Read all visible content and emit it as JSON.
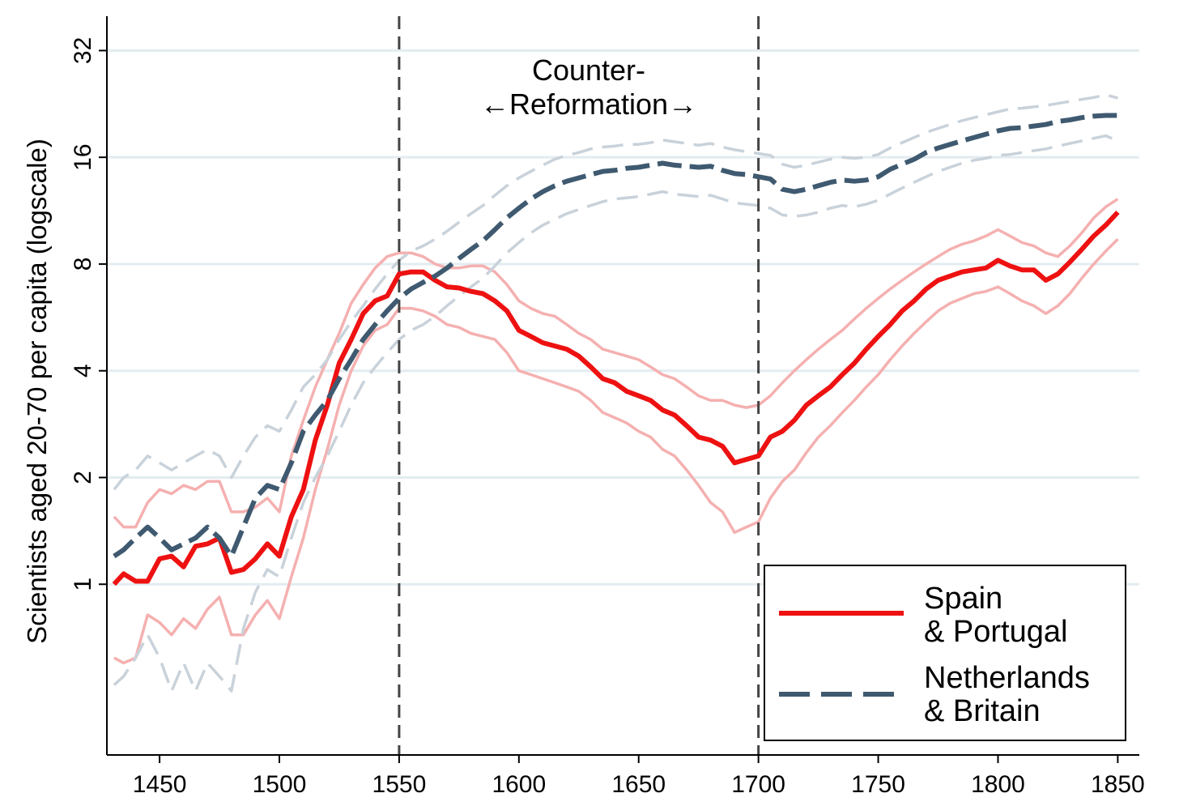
{
  "chart_data": {
    "type": "line",
    "title": "",
    "xlabel": "",
    "ylabel": "Scientists aged 20-70 per capita (logscale)",
    "y_scale": "log2",
    "xlim": [
      1428,
      1859
    ],
    "ylim": [
      0.33,
      40
    ],
    "x_ticks": [
      1450,
      1500,
      1550,
      1600,
      1650,
      1700,
      1750,
      1800,
      1850
    ],
    "y_ticks": [
      1,
      2,
      4,
      8,
      16,
      32
    ],
    "grid": "horizontal",
    "vertical_lines": [
      1550,
      1700
    ],
    "annotation": {
      "line1": "Counter-",
      "line2": "←Reformation→"
    },
    "legend_placement": "bottom-right",
    "legend": [
      {
        "line1": "Spain",
        "line2": "& Portugal",
        "color": "#ee1111",
        "style": "solid"
      },
      {
        "line1": "Netherlands",
        "line2": "& Britain",
        "color": "#3f5a70",
        "style": "dashed"
      }
    ],
    "series": [
      {
        "name": "Spain & Portugal",
        "color": "#ee1111",
        "x": [
          1431,
          1435,
          1440,
          1445,
          1450,
          1455,
          1460,
          1465,
          1470,
          1475,
          1480,
          1485,
          1490,
          1495,
          1500,
          1505,
          1510,
          1515,
          1520,
          1525,
          1530,
          1535,
          1540,
          1545,
          1550,
          1555,
          1560,
          1565,
          1570,
          1575,
          1580,
          1585,
          1590,
          1595,
          1600,
          1605,
          1610,
          1615,
          1620,
          1625,
          1630,
          1635,
          1640,
          1645,
          1650,
          1655,
          1660,
          1665,
          1670,
          1675,
          1680,
          1685,
          1690,
          1695,
          1700,
          1705,
          1710,
          1715,
          1720,
          1725,
          1730,
          1735,
          1740,
          1745,
          1750,
          1755,
          1760,
          1765,
          1770,
          1775,
          1780,
          1785,
          1790,
          1795,
          1800,
          1805,
          1810,
          1815,
          1820,
          1825,
          1830,
          1835,
          1840,
          1845,
          1850
        ],
        "y": [
          1.0,
          1.07,
          1.02,
          1.02,
          1.18,
          1.2,
          1.12,
          1.28,
          1.3,
          1.35,
          1.08,
          1.1,
          1.18,
          1.3,
          1.2,
          1.55,
          1.85,
          2.55,
          3.2,
          4.2,
          4.9,
          5.8,
          6.3,
          6.5,
          7.5,
          7.6,
          7.6,
          7.2,
          6.9,
          6.85,
          6.7,
          6.6,
          6.3,
          5.9,
          5.2,
          5.0,
          4.8,
          4.7,
          4.6,
          4.4,
          4.1,
          3.8,
          3.7,
          3.5,
          3.4,
          3.3,
          3.1,
          3.0,
          2.8,
          2.6,
          2.55,
          2.45,
          2.2,
          2.25,
          2.3,
          2.6,
          2.7,
          2.9,
          3.2,
          3.4,
          3.6,
          3.9,
          4.2,
          4.6,
          5.0,
          5.4,
          5.9,
          6.3,
          6.8,
          7.2,
          7.4,
          7.6,
          7.7,
          7.8,
          8.2,
          7.9,
          7.7,
          7.7,
          7.2,
          7.5,
          8.1,
          8.8,
          9.6,
          10.3,
          11.2
        ]
      },
      {
        "name": "Netherlands & Britain",
        "color": "#3f5a70",
        "x": [
          1431,
          1435,
          1440,
          1445,
          1450,
          1455,
          1460,
          1465,
          1470,
          1475,
          1480,
          1485,
          1490,
          1495,
          1500,
          1505,
          1510,
          1515,
          1520,
          1525,
          1530,
          1535,
          1540,
          1545,
          1550,
          1555,
          1560,
          1565,
          1570,
          1575,
          1580,
          1585,
          1590,
          1595,
          1600,
          1605,
          1610,
          1615,
          1620,
          1625,
          1630,
          1635,
          1640,
          1645,
          1650,
          1655,
          1660,
          1665,
          1670,
          1675,
          1680,
          1685,
          1690,
          1695,
          1700,
          1705,
          1710,
          1715,
          1720,
          1725,
          1730,
          1735,
          1740,
          1745,
          1750,
          1755,
          1760,
          1765,
          1770,
          1775,
          1780,
          1785,
          1790,
          1795,
          1800,
          1805,
          1810,
          1815,
          1820,
          1825,
          1830,
          1835,
          1840,
          1845,
          1850
        ],
        "y": [
          1.2,
          1.25,
          1.35,
          1.45,
          1.35,
          1.25,
          1.3,
          1.35,
          1.45,
          1.35,
          1.2,
          1.45,
          1.75,
          1.9,
          1.85,
          2.2,
          2.7,
          3.0,
          3.3,
          3.8,
          4.3,
          4.9,
          5.4,
          5.9,
          6.4,
          6.8,
          7.1,
          7.4,
          7.8,
          8.3,
          8.8,
          9.3,
          10.0,
          10.8,
          11.5,
          12.2,
          12.8,
          13.3,
          13.7,
          14.0,
          14.3,
          14.6,
          14.7,
          14.9,
          15.0,
          15.2,
          15.4,
          15.2,
          15.1,
          15.0,
          15.1,
          14.7,
          14.4,
          14.3,
          14.1,
          13.9,
          13.0,
          12.8,
          13.0,
          13.3,
          13.6,
          13.8,
          13.7,
          13.8,
          14.1,
          14.8,
          15.3,
          15.8,
          16.5,
          17.0,
          17.4,
          17.8,
          18.2,
          18.6,
          19.0,
          19.3,
          19.4,
          19.6,
          19.8,
          20.2,
          20.4,
          20.7,
          20.9,
          21.0,
          21.0
        ]
      }
    ],
    "confidence_bands": [
      {
        "series": "Spain & Portugal",
        "color": "#f5b0b0",
        "upper": [
          1.55,
          1.45,
          1.45,
          1.7,
          1.85,
          1.8,
          1.9,
          1.85,
          1.95,
          1.95,
          1.6,
          1.6,
          1.65,
          1.75,
          1.6,
          2.3,
          2.9,
          3.6,
          4.3,
          5.1,
          6.2,
          7.0,
          7.8,
          8.4,
          8.6,
          8.6,
          8.4,
          8.0,
          7.8,
          7.8,
          7.9,
          7.9,
          7.6,
          7.0,
          6.3,
          6.0,
          5.8,
          5.7,
          5.4,
          5.1,
          4.9,
          4.6,
          4.5,
          4.4,
          4.3,
          4.1,
          3.9,
          3.8,
          3.6,
          3.4,
          3.3,
          3.3,
          3.2,
          3.15,
          3.2,
          3.4,
          3.7,
          4.0,
          4.3,
          4.6,
          4.9,
          5.2,
          5.6,
          6.0,
          6.4,
          6.8,
          7.2,
          7.6,
          8.0,
          8.4,
          8.8,
          9.1,
          9.3,
          9.6,
          10.0,
          9.6,
          9.2,
          9.0,
          8.6,
          8.4,
          9.0,
          9.8,
          10.8,
          11.6,
          12.2
        ],
        "lower": [
          0.62,
          0.6,
          0.62,
          0.82,
          0.78,
          0.72,
          0.8,
          0.75,
          0.85,
          0.92,
          0.72,
          0.72,
          0.82,
          0.9,
          0.8,
          1.05,
          1.35,
          1.85,
          2.4,
          3.2,
          4.0,
          4.7,
          5.2,
          5.4,
          6.0,
          6.0,
          5.9,
          5.7,
          5.4,
          5.3,
          5.1,
          5.0,
          4.9,
          4.5,
          4.0,
          3.9,
          3.8,
          3.7,
          3.6,
          3.5,
          3.3,
          3.05,
          2.95,
          2.85,
          2.7,
          2.6,
          2.4,
          2.3,
          2.1,
          1.9,
          1.7,
          1.6,
          1.4,
          1.45,
          1.5,
          1.75,
          1.95,
          2.1,
          2.35,
          2.6,
          2.8,
          3.05,
          3.3,
          3.6,
          3.9,
          4.3,
          4.7,
          5.1,
          5.5,
          5.9,
          6.2,
          6.4,
          6.6,
          6.7,
          6.9,
          6.6,
          6.3,
          6.1,
          5.8,
          6.1,
          6.6,
          7.3,
          8.0,
          8.7,
          9.4
        ]
      },
      {
        "series": "Netherlands & Britain",
        "color": "#c9d2da",
        "upper": [
          1.85,
          2.0,
          2.1,
          2.3,
          2.2,
          2.1,
          2.2,
          2.3,
          2.4,
          2.3,
          2.0,
          2.3,
          2.6,
          2.8,
          2.7,
          3.1,
          3.6,
          3.9,
          4.3,
          4.9,
          5.5,
          6.1,
          6.8,
          7.5,
          8.2,
          8.7,
          9.0,
          9.4,
          9.9,
          10.5,
          11.1,
          11.7,
          12.5,
          13.3,
          14.0,
          14.6,
          15.2,
          15.8,
          16.2,
          16.5,
          16.9,
          17.1,
          17.2,
          17.4,
          17.4,
          17.6,
          17.9,
          17.7,
          17.5,
          17.3,
          17.5,
          17.1,
          16.8,
          16.6,
          16.4,
          16.2,
          15.3,
          15.0,
          15.2,
          15.5,
          15.8,
          16.0,
          15.9,
          16.0,
          16.3,
          17.0,
          17.6,
          18.2,
          18.8,
          19.3,
          19.8,
          20.3,
          20.7,
          21.1,
          21.5,
          21.9,
          22.0,
          22.2,
          22.4,
          22.7,
          23.0,
          23.3,
          23.6,
          24.0,
          23.5
        ],
        "lower": [
          0.52,
          0.55,
          0.62,
          0.72,
          0.62,
          0.5,
          0.6,
          0.5,
          0.6,
          0.55,
          0.5,
          0.75,
          0.95,
          1.1,
          1.05,
          1.35,
          1.7,
          2.0,
          2.3,
          2.7,
          3.2,
          3.7,
          4.1,
          4.5,
          4.9,
          5.2,
          5.4,
          5.7,
          6.1,
          6.5,
          6.9,
          7.3,
          7.9,
          8.6,
          9.2,
          9.8,
          10.3,
          10.7,
          11.1,
          11.4,
          11.7,
          12.0,
          12.2,
          12.3,
          12.4,
          12.6,
          12.8,
          12.6,
          12.5,
          12.4,
          12.5,
          12.2,
          11.9,
          11.8,
          11.7,
          11.5,
          11.0,
          10.9,
          11.0,
          11.2,
          11.5,
          11.7,
          11.6,
          11.8,
          12.1,
          12.6,
          13.1,
          13.6,
          14.1,
          14.6,
          15.0,
          15.4,
          15.7,
          15.9,
          16.2,
          16.3,
          16.5,
          16.7,
          16.9,
          17.2,
          17.5,
          17.8,
          18.1,
          18.4,
          17.8
        ]
      }
    ]
  }
}
